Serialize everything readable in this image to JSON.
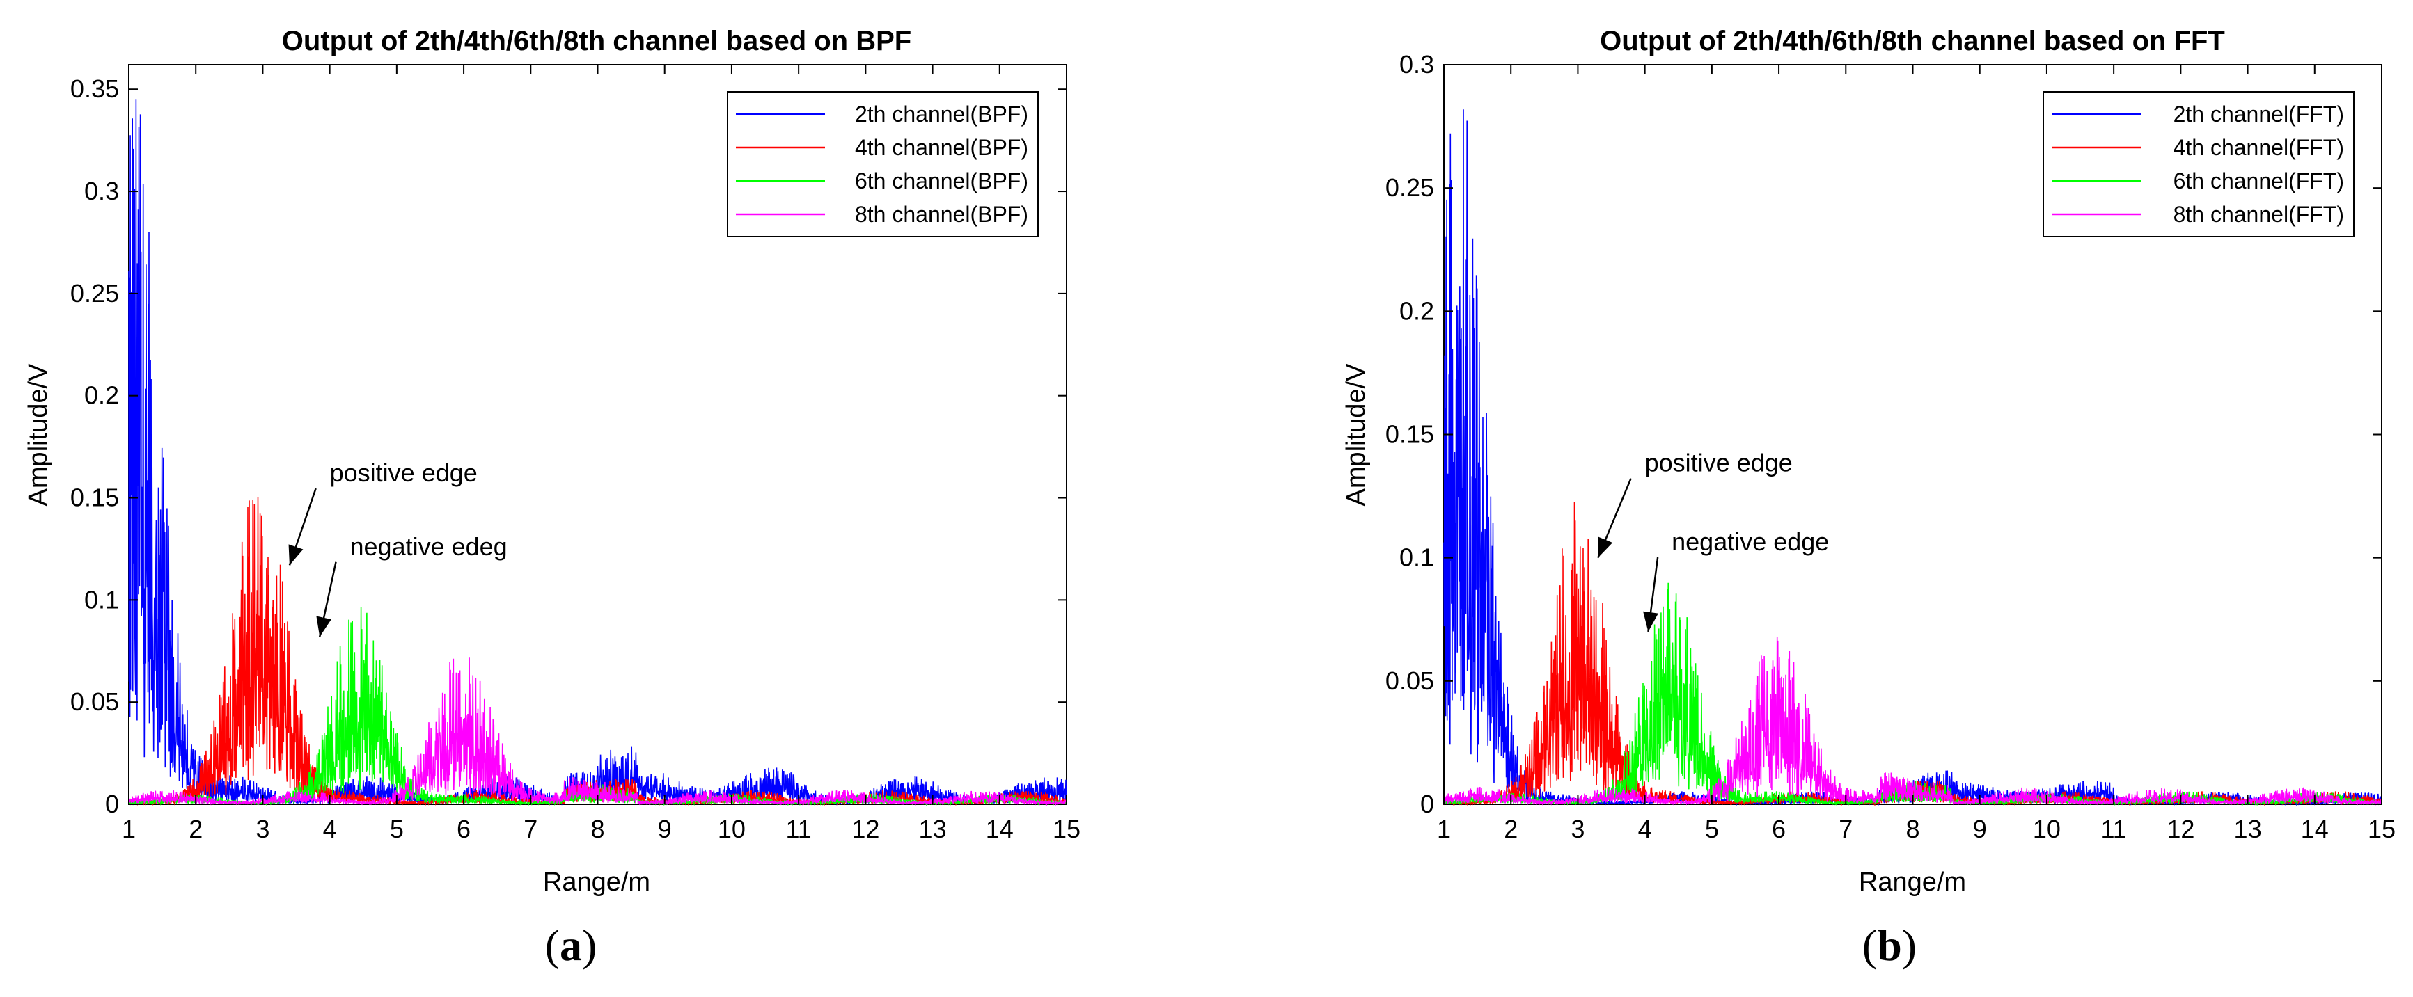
{
  "chart_data": [
    {
      "type": "line",
      "title": "Output of 2th/4th/6th/8th channel based on BPF",
      "xlabel": "Range/m",
      "ylabel": "Amplitude/V",
      "xlim": [
        1,
        15
      ],
      "ylim": [
        0,
        0.362
      ],
      "xticks": [
        1,
        2,
        3,
        4,
        5,
        6,
        7,
        8,
        9,
        10,
        11,
        12,
        13,
        14,
        15
      ],
      "yticks": [
        0,
        0.05,
        0.1,
        0.15,
        0.2,
        0.25,
        0.3,
        0.35
      ],
      "ytick_labels": [
        "0",
        "0.05",
        "0.1",
        "0.15",
        "0.2",
        "0.25",
        "0.3",
        "0.35"
      ],
      "legend_position": "top-right",
      "caption": "a",
      "series": [
        {
          "name": "2th channel(BPF)",
          "color": "#0000ff",
          "center": 1.0,
          "width": 0.6,
          "peak": 0.33,
          "tail": 0.008,
          "noise_seed": 11,
          "cut_after": 2.3
        },
        {
          "name": "4th channel(BPF)",
          "color": "#ff0000",
          "center": 2.95,
          "width": 0.55,
          "peak": 0.145,
          "tail": 0.004,
          "noise_seed": 22,
          "start": 1.0
        },
        {
          "name": "6th channel(BPF)",
          "color": "#00ff00",
          "center": 4.45,
          "width": 0.55,
          "peak": 0.088,
          "tail": 0.003,
          "noise_seed": 33,
          "start": 1.0
        },
        {
          "name": "8th channel(BPF)",
          "color": "#ff00ff",
          "center": 6.0,
          "width": 0.6,
          "peak": 0.065,
          "tail": 0.004,
          "noise_seed": 44,
          "start": 1.0
        }
      ],
      "annotations": [
        {
          "text": "positive edge",
          "x": 4.0,
          "y": 0.158,
          "arrow_to": [
            3.4,
            0.117
          ]
        },
        {
          "text": "negative edeg",
          "x": 4.3,
          "y": 0.122,
          "arrow_to": [
            3.85,
            0.082
          ]
        }
      ]
    },
    {
      "type": "line",
      "title": "Output of 2th/4th/6th/8th channel based on FFT",
      "xlabel": "Range/m",
      "ylabel": "Amplitude/V",
      "xlim": [
        1,
        15
      ],
      "ylim": [
        0,
        0.3
      ],
      "xticks": [
        1,
        2,
        3,
        4,
        5,
        6,
        7,
        8,
        9,
        10,
        11,
        12,
        13,
        14,
        15
      ],
      "yticks": [
        0,
        0.05,
        0.1,
        0.15,
        0.2,
        0.25,
        0.3
      ],
      "ytick_labels": [
        "0",
        "0.05",
        "0.1",
        "0.15",
        "0.2",
        "0.25",
        "0.3"
      ],
      "legend_position": "top-right",
      "caption": "b",
      "series": [
        {
          "name": "2th channel(FFT)",
          "color": "#0000ff",
          "center": 1.2,
          "width": 0.55,
          "peak": 0.27,
          "tail": 0.003,
          "noise_seed": 55,
          "cut_after": 2.6
        },
        {
          "name": "4th channel(FFT)",
          "color": "#ff0000",
          "center": 3.0,
          "width": 0.55,
          "peak": 0.115,
          "tail": 0.003,
          "noise_seed": 66,
          "start": 1.0
        },
        {
          "name": "6th channel(FFT)",
          "color": "#00ff00",
          "center": 4.4,
          "width": 0.55,
          "peak": 0.08,
          "tail": 0.003,
          "noise_seed": 77,
          "start": 1.0
        },
        {
          "name": "8th channel(FFT)",
          "color": "#ff00ff",
          "center": 6.0,
          "width": 0.6,
          "peak": 0.06,
          "tail": 0.004,
          "noise_seed": 88,
          "start": 1.0
        }
      ],
      "annotations": [
        {
          "text": "positive edge",
          "x": 4.0,
          "y": 0.135,
          "arrow_to": [
            3.3,
            0.1
          ]
        },
        {
          "text": "negative edge",
          "x": 4.4,
          "y": 0.103,
          "arrow_to": [
            4.05,
            0.07
          ]
        }
      ]
    }
  ]
}
